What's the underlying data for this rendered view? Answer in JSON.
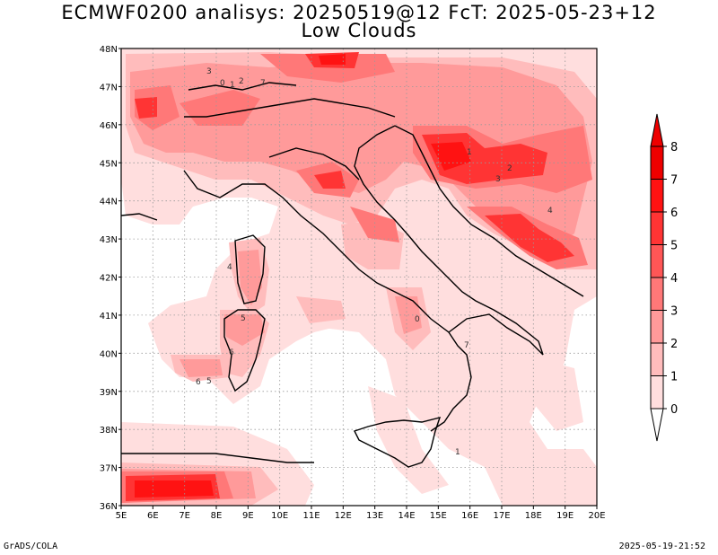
{
  "header": {
    "title_line1": "ECMWF0200 analisys: 20250519@12 FcT: 2025-05-23+12",
    "title_line2": "Low Clouds"
  },
  "map": {
    "lon_ticks": [
      "5E",
      "6E",
      "7E",
      "8E",
      "9E",
      "10E",
      "11E",
      "12E",
      "13E",
      "14E",
      "15E",
      "16E",
      "17E",
      "18E",
      "19E",
      "20E"
    ],
    "lat_ticks": [
      "48N",
      "47N",
      "46N",
      "45N",
      "44N",
      "43N",
      "42N",
      "41N",
      "40N",
      "39N",
      "38N",
      "37N",
      "36N"
    ],
    "lon_range": [
      5,
      20
    ],
    "lat_range": [
      36,
      48
    ],
    "contour_labels": [
      "1",
      "2",
      "3",
      "4",
      "5",
      "6",
      "7",
      "0"
    ]
  },
  "colorbar": {
    "levels": [
      "0",
      "1",
      "2",
      "3",
      "4",
      "5",
      "6",
      "7",
      "8"
    ],
    "colors": [
      "#ffffff",
      "#ffdede",
      "#ffbcbc",
      "#ff9a9a",
      "#ff7878",
      "#ff5656",
      "#ff3434",
      "#ff1212",
      "#ee0000"
    ]
  },
  "footer": {
    "left": "GrADS/COLA",
    "right": "2025-05-19-21:52"
  }
}
